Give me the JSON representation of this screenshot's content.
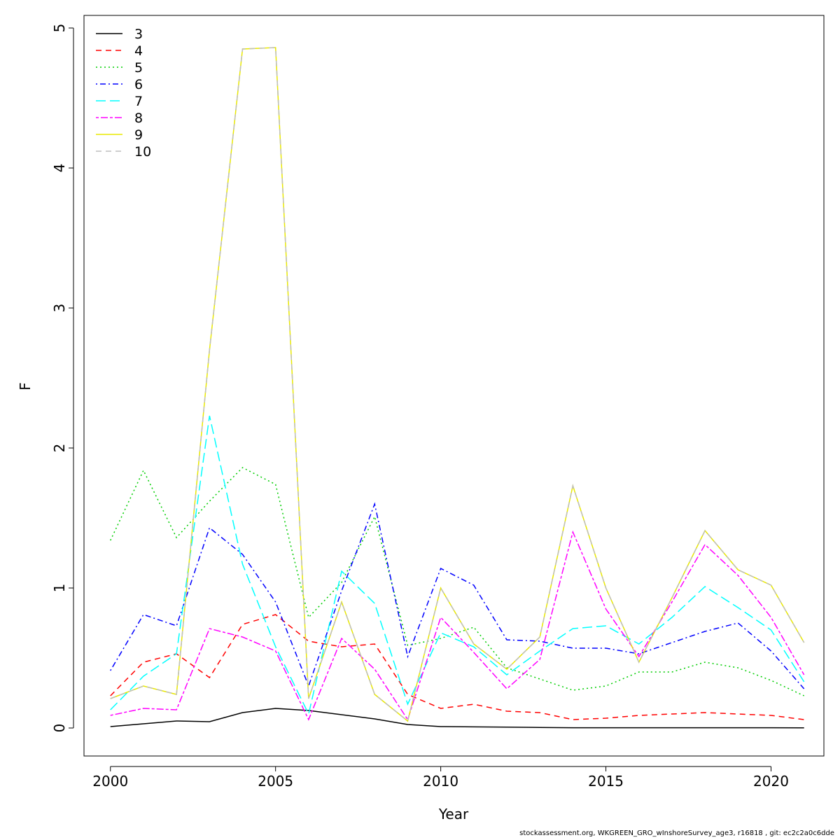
{
  "chart_data": {
    "type": "line",
    "xlabel": "Year",
    "ylabel": "F",
    "xlim": [
      1999.2,
      2021.6
    ],
    "ylim": [
      -0.2,
      5.09
    ],
    "x_ticks": [
      2000,
      2005,
      2010,
      2015,
      2020
    ],
    "y_ticks": [
      0,
      1,
      2,
      3,
      4,
      5
    ],
    "legend_position": "top-left",
    "x": [
      2000,
      2001,
      2002,
      2003,
      2004,
      2005,
      2006,
      2007,
      2008,
      2009,
      2010,
      2011,
      2012,
      2013,
      2014,
      2015,
      2016,
      2017,
      2018,
      2019,
      2020,
      2021
    ],
    "series": [
      {
        "name": "3",
        "color": "#000000",
        "dash": "solid",
        "values": [
          0.01,
          0.03,
          0.05,
          0.045,
          0.11,
          0.14,
          0.125,
          0.095,
          0.065,
          0.025,
          0.01,
          0.008,
          0.006,
          0.004,
          0.002,
          0.002,
          0.002,
          0.002,
          0.002,
          0.002,
          0.002,
          0.001
        ]
      },
      {
        "name": "4",
        "color": "#ff0000",
        "dash": "dashed",
        "values": [
          0.23,
          0.47,
          0.53,
          0.36,
          0.74,
          0.81,
          0.62,
          0.58,
          0.6,
          0.24,
          0.14,
          0.17,
          0.12,
          0.11,
          0.06,
          0.07,
          0.09,
          0.1,
          0.11,
          0.1,
          0.09,
          0.06
        ]
      },
      {
        "name": "5",
        "color": "#00cd00",
        "dash": "dotted",
        "values": [
          1.34,
          1.84,
          1.36,
          1.62,
          1.86,
          1.74,
          0.79,
          1.04,
          1.51,
          0.59,
          0.64,
          0.72,
          0.43,
          0.35,
          0.27,
          0.3,
          0.4,
          0.4,
          0.47,
          0.43,
          0.34,
          0.23
        ]
      },
      {
        "name": "6",
        "color": "#0000ff",
        "dash": "dotdash",
        "values": [
          0.41,
          0.81,
          0.73,
          1.43,
          1.24,
          0.9,
          0.3,
          0.98,
          1.6,
          0.51,
          1.14,
          1.02,
          0.63,
          0.62,
          0.57,
          0.57,
          0.53,
          0.61,
          0.69,
          0.75,
          0.55,
          0.28
        ]
      },
      {
        "name": "7",
        "color": "#00ffff",
        "dash": "longdash",
        "values": [
          0.13,
          0.37,
          0.53,
          2.23,
          1.17,
          0.58,
          0.1,
          1.12,
          0.89,
          0.17,
          0.68,
          0.58,
          0.38,
          0.55,
          0.71,
          0.73,
          0.6,
          0.79,
          1.01,
          0.86,
          0.7,
          0.33
        ]
      },
      {
        "name": "8",
        "color": "#ff00ff",
        "dash": "twodash",
        "values": [
          0.09,
          0.14,
          0.13,
          0.71,
          0.65,
          0.55,
          0.06,
          0.64,
          0.42,
          0.06,
          0.79,
          0.54,
          0.28,
          0.49,
          1.4,
          0.85,
          0.51,
          0.9,
          1.31,
          1.09,
          0.79,
          0.38
        ]
      },
      {
        "name": "9",
        "color": "#e8e800",
        "dash": "solid",
        "values": [
          0.21,
          0.3,
          0.24,
          2.7,
          4.85,
          4.86,
          0.21,
          0.9,
          0.24,
          0.05,
          1.0,
          0.6,
          0.42,
          0.65,
          1.73,
          1.0,
          0.47,
          0.93,
          1.41,
          1.13,
          1.02,
          0.61
        ]
      },
      {
        "name": "10",
        "color": "#bebebe",
        "dash": "dashed",
        "values": [
          0.21,
          0.3,
          0.24,
          2.7,
          4.85,
          4.86,
          0.21,
          0.9,
          0.24,
          0.05,
          1.0,
          0.6,
          0.42,
          0.65,
          1.73,
          1.0,
          0.47,
          0.93,
          1.41,
          1.13,
          1.02,
          0.61
        ]
      }
    ]
  },
  "footer_text": "stockassessment.org, WKGREEN_GRO_wInshoreSurvey_age3, r16818 , git: ec2c2a0c6dde"
}
